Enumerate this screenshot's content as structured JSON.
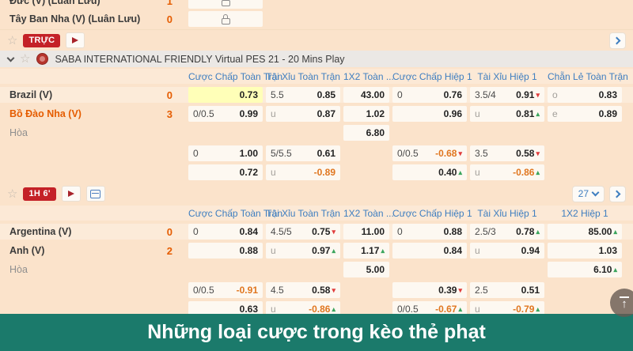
{
  "colors": {
    "page_bg": "#fbe3cb",
    "accent_red": "#c42127",
    "header_blue": "#3e7ec0",
    "banner_teal": "#1b7a6b",
    "odds_negative": "#e0761f",
    "trend_up": "#3aa55d",
    "trend_down": "#e03c3c",
    "highlight_cell": "#ffffb8",
    "team_orange": "#e55c00"
  },
  "icons": {
    "star": "☆",
    "up_arrow": "▴",
    "down_arrow": "▾",
    "scroll_top_arrow": "↑"
  },
  "top_rows": [
    {
      "team": "Đức (V) (Luân Lưu)",
      "score": "1"
    },
    {
      "team": "Tây Ban Nha (V) (Luân Lưu)",
      "score": "0"
    }
  ],
  "live_bar": {
    "badge": "TRỰC"
  },
  "league": {
    "title": "SABA INTERNATIONAL FRIENDLY Virtual PES 21 - 20 Mins Play"
  },
  "match1": {
    "columns": [
      "Cược Chấp Toàn Trận",
      "Tài Xỉu Toàn Trận",
      "1X2 Toàn ...",
      "Cược Chấp Hiệp 1",
      "Tài Xỉu Hiệp 1",
      "Chẵn Lẻ Toàn Trận"
    ],
    "rows": [
      {
        "team": "Brazil (V)",
        "style": "dark",
        "score": "0",
        "band": true,
        "cells": [
          {
            "hc": "",
            "odds": "0.73",
            "hl": true
          },
          {
            "hc": "5.5",
            "odds": "0.85"
          },
          {
            "hc": "",
            "odds": "43.00"
          },
          {
            "hc": "0",
            "odds": "0.76"
          },
          {
            "hc": "3.5/4",
            "odds": "0.91",
            "dir": "down"
          },
          {
            "hc": "o",
            "dim": true,
            "odds": "0.83"
          }
        ]
      },
      {
        "team": "Bồ Đào Nha (V)",
        "style": "orange",
        "score": "3",
        "cells": [
          {
            "hc": "0/0.5",
            "odds": "0.99"
          },
          {
            "hc": "u",
            "dim": true,
            "odds": "0.87"
          },
          {
            "hc": "",
            "odds": "1.02"
          },
          {
            "hc": "",
            "odds": "0.96"
          },
          {
            "hc": "u",
            "dim": true,
            "odds": "0.81",
            "dir": "up"
          },
          {
            "hc": "e",
            "dim": true,
            "odds": "0.89"
          }
        ]
      },
      {
        "team": "Hòa",
        "style": "draw",
        "score": "",
        "cells": [
          null,
          null,
          {
            "hc": "",
            "odds": "6.80"
          },
          null,
          null,
          null
        ]
      },
      {
        "spacer": true,
        "cells": [
          {
            "hc": "0",
            "odds": "1.00"
          },
          {
            "hc": "5/5.5",
            "odds": "0.61"
          },
          null,
          {
            "hc": "0/0.5",
            "odds": "-0.68",
            "neg": true,
            "dir": "down"
          },
          {
            "hc": "3.5",
            "odds": "0.58",
            "dir": "down"
          },
          null
        ]
      },
      {
        "cells": [
          {
            "hc": "",
            "odds": "0.72"
          },
          {
            "hc": "u",
            "dim": true,
            "odds": "-0.89",
            "neg": true
          },
          null,
          {
            "hc": "",
            "odds": "0.40",
            "dir": "up"
          },
          {
            "hc": "u",
            "dim": true,
            "odds": "-0.86",
            "neg": true,
            "dir": "up"
          },
          null
        ]
      }
    ]
  },
  "toolbar2": {
    "badge": "1H 6'",
    "markets": "27"
  },
  "match2": {
    "columns": [
      "Cược Chấp Toàn Trận",
      "Tài Xỉu Toàn Trận",
      "1X2 Toàn ...",
      "Cược Chấp Hiệp 1",
      "Tài Xỉu Hiệp 1",
      "1X2 Hiệp 1"
    ],
    "rows": [
      {
        "team": "Argentina (V)",
        "style": "dark",
        "score": "0",
        "band": true,
        "cells": [
          {
            "hc": "0",
            "odds": "0.84"
          },
          {
            "hc": "4.5/5",
            "odds": "0.75",
            "dir": "down"
          },
          {
            "hc": "",
            "odds": "11.00"
          },
          {
            "hc": "0",
            "odds": "0.88"
          },
          {
            "hc": "2.5/3",
            "odds": "0.78",
            "dir": "up"
          },
          {
            "hc": "",
            "odds": "85.00",
            "dir": "up"
          }
        ]
      },
      {
        "team": "Anh (V)",
        "style": "dark",
        "score": "2",
        "cells": [
          {
            "hc": "",
            "odds": "0.88"
          },
          {
            "hc": "u",
            "dim": true,
            "odds": "0.97",
            "dir": "up"
          },
          {
            "hc": "",
            "odds": "1.17",
            "dir": "up"
          },
          {
            "hc": "",
            "odds": "0.84"
          },
          {
            "hc": "u",
            "dim": true,
            "odds": "0.94"
          },
          {
            "hc": "",
            "odds": "1.03"
          }
        ]
      },
      {
        "team": "Hòa",
        "style": "draw",
        "score": "",
        "cells": [
          null,
          null,
          {
            "hc": "",
            "odds": "5.00"
          },
          null,
          null,
          {
            "hc": "",
            "odds": "6.10",
            "dir": "up"
          }
        ]
      },
      {
        "spacer": true,
        "cells": [
          {
            "hc": "0/0.5",
            "odds": "-0.91",
            "neg": true
          },
          {
            "hc": "4.5",
            "odds": "0.58",
            "dir": "down"
          },
          null,
          {
            "hc": "",
            "odds": "0.39",
            "dir": "down"
          },
          {
            "hc": "2.5",
            "odds": "0.51"
          },
          null
        ]
      },
      {
        "cells": [
          {
            "hc": "",
            "odds": "0.63"
          },
          {
            "hc": "u",
            "dim": true,
            "odds": "-0.86",
            "neg": true,
            "dir": "up"
          },
          null,
          {
            "hc": "0/0.5",
            "odds": "-0.67",
            "neg": true,
            "dir": "up"
          },
          {
            "hc": "u",
            "dim": true,
            "odds": "-0.79",
            "neg": true,
            "dir": "up"
          },
          null
        ]
      }
    ]
  },
  "banner": {
    "text": "Những loại cược trong kèo thẻ phạt"
  }
}
